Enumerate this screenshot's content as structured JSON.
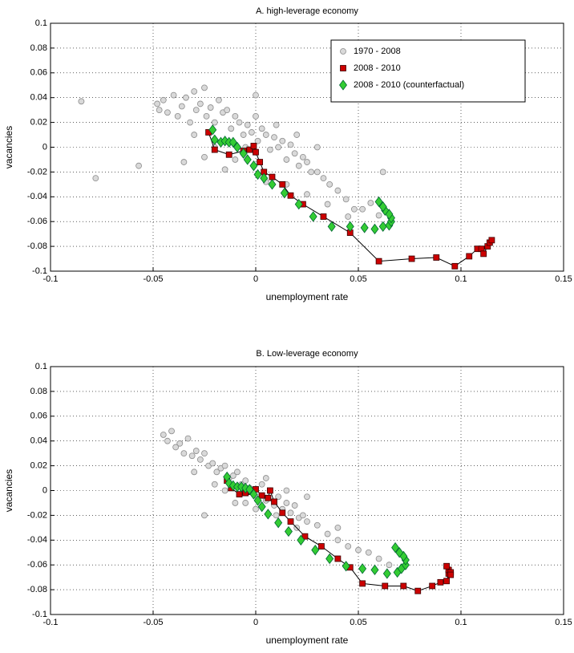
{
  "chart_data": [
    {
      "type": "scatter",
      "title": "A. high-leverage economy",
      "xlabel": "unemployment rate",
      "ylabel": "vacancies",
      "xlim": [
        -0.1,
        0.15
      ],
      "ylim": [
        -0.1,
        0.1
      ],
      "xticks": [
        -0.1,
        -0.05,
        0,
        0.05,
        0.1,
        0.15
      ],
      "yticks": [
        -0.1,
        -0.08,
        -0.06,
        -0.04,
        -0.02,
        0,
        0.02,
        0.04,
        0.06,
        0.08,
        0.1
      ],
      "grid": true,
      "legend": "upper right",
      "series": [
        {
          "name": "1970 - 2008",
          "color": "#d9d9d9",
          "marker": "circle",
          "line": false,
          "x": [
            -0.085,
            -0.078,
            -0.057,
            -0.048,
            -0.047,
            -0.045,
            -0.043,
            -0.04,
            -0.038,
            -0.036,
            -0.034,
            -0.032,
            -0.03,
            -0.029,
            -0.027,
            -0.025,
            -0.024,
            -0.022,
            -0.02,
            -0.018,
            -0.016,
            -0.014,
            -0.012,
            -0.01,
            -0.008,
            -0.006,
            -0.004,
            -0.002,
            0.0,
            0.001,
            0.003,
            0.005,
            0.007,
            0.009,
            0.011,
            0.013,
            0.015,
            0.017,
            0.019,
            0.021,
            0.023,
            0.025,
            0.027,
            0.03,
            0.033,
            0.036,
            0.04,
            0.044,
            0.048,
            0.052,
            0.056,
            0.06,
            0.062,
            -0.03,
            -0.02,
            -0.01,
            0.0,
            0.01,
            0.02,
            0.03,
            -0.035,
            -0.025,
            -0.015,
            -0.005,
            0.005,
            0.015,
            0.025,
            0.035,
            0.045
          ],
          "values": [
            0.037,
            -0.025,
            -0.015,
            0.035,
            0.03,
            0.038,
            0.028,
            0.042,
            0.025,
            0.033,
            0.04,
            0.02,
            0.045,
            0.03,
            0.035,
            0.048,
            0.025,
            0.032,
            0.02,
            0.038,
            0.028,
            0.03,
            0.015,
            0.025,
            0.02,
            0.01,
            0.018,
            0.012,
            0.042,
            0.005,
            0.015,
            0.01,
            -0.002,
            0.008,
            0.0,
            0.005,
            -0.01,
            0.002,
            -0.005,
            -0.015,
            -0.008,
            -0.012,
            -0.02,
            -0.02,
            -0.025,
            -0.03,
            -0.035,
            -0.042,
            -0.05,
            -0.05,
            -0.045,
            -0.055,
            -0.02,
            0.01,
            0.0,
            -0.01,
            0.025,
            0.018,
            0.01,
            0.0,
            -0.012,
            -0.008,
            -0.018,
            0.0,
            -0.028,
            -0.03,
            -0.038,
            -0.046,
            -0.056
          ]
        },
        {
          "name": "2008 - 2010",
          "color": "#cc0000",
          "marker": "square",
          "line": true,
          "x": [
            -0.023,
            -0.02,
            -0.013,
            -0.006,
            -0.003,
            -0.001,
            0.0,
            0.002,
            0.004,
            0.008,
            0.013,
            0.017,
            0.023,
            0.033,
            0.046,
            0.06,
            0.076,
            0.088,
            0.097,
            0.104,
            0.108,
            0.11,
            0.111,
            0.113,
            0.114,
            0.115
          ],
          "values": [
            0.012,
            -0.002,
            -0.006,
            -0.003,
            -0.002,
            0.001,
            -0.004,
            -0.012,
            -0.02,
            -0.024,
            -0.03,
            -0.039,
            -0.046,
            -0.056,
            -0.069,
            -0.092,
            -0.09,
            -0.089,
            -0.096,
            -0.088,
            -0.082,
            -0.082,
            -0.086,
            -0.08,
            -0.077,
            -0.075
          ]
        },
        {
          "name": "2008 - 2010 (counterfactual)",
          "color": "#33cc33",
          "marker": "diamond",
          "line": false,
          "x": [
            -0.021,
            -0.02,
            -0.017,
            -0.015,
            -0.013,
            -0.011,
            -0.009,
            -0.006,
            -0.004,
            -0.001,
            0.001,
            0.004,
            0.008,
            0.014,
            0.021,
            0.028,
            0.037,
            0.046,
            0.053,
            0.058,
            0.062,
            0.065,
            0.066,
            0.066,
            0.065,
            0.063,
            0.062,
            0.06
          ],
          "values": [
            0.014,
            0.006,
            0.004,
            0.005,
            0.004,
            0.004,
            0.0,
            -0.005,
            -0.01,
            -0.015,
            -0.022,
            -0.025,
            -0.03,
            -0.037,
            -0.046,
            -0.056,
            -0.064,
            -0.064,
            -0.065,
            -0.066,
            -0.064,
            -0.063,
            -0.06,
            -0.057,
            -0.054,
            -0.051,
            -0.048,
            -0.044
          ]
        }
      ]
    },
    {
      "type": "scatter",
      "title": "B. Low-leverage economy",
      "xlabel": "unemployment rate",
      "ylabel": "vacancies",
      "xlim": [
        -0.1,
        0.15
      ],
      "ylim": [
        -0.1,
        0.1
      ],
      "xticks": [
        -0.1,
        -0.05,
        0,
        0.05,
        0.1,
        0.15
      ],
      "yticks": [
        -0.1,
        -0.08,
        -0.06,
        -0.04,
        -0.02,
        0,
        0.02,
        0.04,
        0.06,
        0.08,
        0.1
      ],
      "grid": true,
      "series": [
        {
          "color": "#d9d9d9",
          "marker": "circle",
          "line": false,
          "x": [
            -0.045,
            -0.043,
            -0.041,
            -0.039,
            -0.037,
            -0.035,
            -0.033,
            -0.031,
            -0.029,
            -0.027,
            -0.025,
            -0.023,
            -0.021,
            -0.019,
            -0.017,
            -0.015,
            -0.013,
            -0.011,
            -0.009,
            -0.007,
            -0.005,
            -0.003,
            -0.001,
            0.001,
            0.003,
            0.005,
            0.007,
            0.009,
            0.011,
            0.013,
            0.015,
            0.017,
            0.019,
            0.021,
            0.023,
            0.025,
            0.03,
            0.035,
            0.04,
            0.045,
            0.05,
            0.055,
            0.06,
            0.065,
            -0.03,
            -0.02,
            -0.01,
            0.0,
            0.01,
            0.02,
            -0.025,
            -0.015,
            -0.005,
            0.005,
            0.015,
            0.025,
            0.04
          ],
          "values": [
            0.045,
            0.04,
            0.048,
            0.035,
            0.038,
            0.03,
            0.042,
            0.028,
            0.032,
            0.025,
            0.03,
            0.02,
            0.022,
            0.015,
            0.018,
            0.02,
            0.01,
            0.012,
            0.015,
            0.005,
            0.008,
            0.002,
            0.0,
            -0.005,
            0.005,
            -0.008,
            0.0,
            -0.012,
            -0.005,
            -0.015,
            -0.01,
            -0.018,
            -0.012,
            -0.022,
            -0.02,
            -0.025,
            -0.028,
            -0.035,
            -0.04,
            -0.045,
            -0.048,
            -0.05,
            -0.055,
            -0.06,
            0.015,
            0.005,
            -0.01,
            -0.015,
            -0.02,
            -0.03,
            -0.02,
            0.0,
            -0.01,
            0.01,
            0.0,
            -0.005,
            -0.03
          ]
        },
        {
          "color": "#cc0000",
          "marker": "square",
          "line": true,
          "x": [
            -0.014,
            -0.012,
            -0.008,
            -0.005,
            -0.002,
            0.0,
            0.003,
            0.006,
            0.007,
            0.009,
            0.013,
            0.017,
            0.024,
            0.032,
            0.04,
            0.046,
            0.052,
            0.063,
            0.072,
            0.079,
            0.086,
            0.09,
            0.093,
            0.094,
            0.094,
            0.095,
            0.093,
            0.095
          ],
          "values": [
            0.008,
            0.002,
            -0.003,
            -0.002,
            -0.001,
            0.001,
            -0.004,
            -0.006,
            0.0,
            -0.009,
            -0.018,
            -0.025,
            -0.037,
            -0.045,
            -0.055,
            -0.062,
            -0.075,
            -0.077,
            -0.077,
            -0.081,
            -0.077,
            -0.074,
            -0.073,
            -0.067,
            -0.064,
            -0.066,
            -0.061,
            -0.068
          ]
        },
        {
          "color": "#33cc33",
          "marker": "diamond",
          "line": false,
          "x": [
            -0.014,
            -0.013,
            -0.011,
            -0.009,
            -0.007,
            -0.005,
            -0.003,
            -0.001,
            0.001,
            0.003,
            0.006,
            0.011,
            0.016,
            0.022,
            0.029,
            0.036,
            0.044,
            0.052,
            0.058,
            0.064,
            0.069,
            0.071,
            0.073,
            0.073,
            0.072,
            0.07,
            0.068
          ],
          "values": [
            0.011,
            0.006,
            0.004,
            0.003,
            0.003,
            0.002,
            0.001,
            -0.003,
            -0.008,
            -0.013,
            -0.019,
            -0.026,
            -0.033,
            -0.04,
            -0.048,
            -0.055,
            -0.061,
            -0.063,
            -0.064,
            -0.067,
            -0.066,
            -0.063,
            -0.06,
            -0.056,
            -0.053,
            -0.05,
            -0.046
          ]
        }
      ]
    }
  ]
}
